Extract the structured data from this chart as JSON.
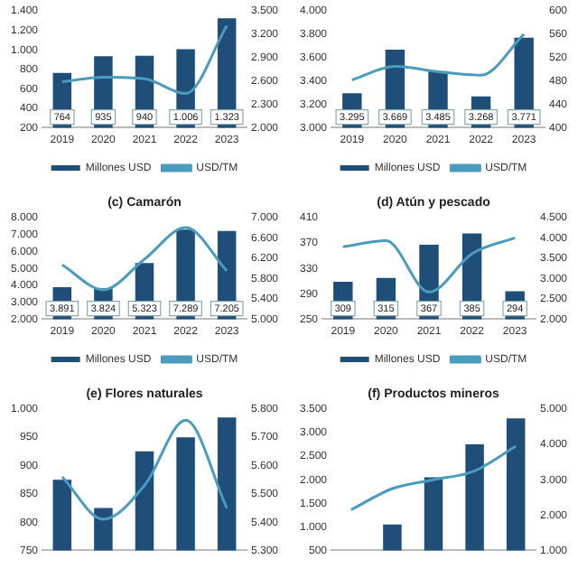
{
  "chart_data": [
    {
      "type": "bar",
      "categories": [
        "2019",
        "2020",
        "2021",
        "2022",
        "2023"
      ],
      "series": [
        {
          "name": "Millones USD",
          "color": "#1f4e79",
          "values": [
            764,
            935,
            940,
            1006,
            1323
          ],
          "value_labels": [
            "764",
            "935",
            "940",
            "1.006",
            "1.323"
          ]
        },
        {
          "name": "USD/TM",
          "type": "line",
          "axis": "y2",
          "color": "#4a9bbd",
          "values": [
            2590,
            2650,
            2630,
            2440,
            3310
          ]
        }
      ],
      "ylim": [
        200,
        1400
      ],
      "yticks": [
        200,
        400,
        600,
        800,
        {
          "value": 1000,
          "label": "1.000"
        },
        {
          "value": 1200,
          "label": "1.200"
        },
        {
          "value": 1400,
          "label": "1.400"
        }
      ],
      "y2lim": [
        2000,
        3500
      ],
      "y2ticks": [
        {
          "value": 2000,
          "label": "2.000"
        },
        {
          "value": 2300,
          "label": "2.300"
        },
        {
          "value": 2600,
          "label": "2.600"
        },
        {
          "value": 2900,
          "label": "2.900"
        },
        {
          "value": 3200,
          "label": "3.200"
        },
        {
          "value": 3500,
          "label": "3.500"
        }
      ],
      "legend": "bottom",
      "marker": "none",
      "grid": false
    },
    {
      "type": "bar",
      "categories": [
        "2019",
        "2020",
        "2021",
        "2022",
        "2023"
      ],
      "series": [
        {
          "name": "Millones USD",
          "color": "#1f4e79",
          "values": [
            3295,
            3669,
            3485,
            3268,
            3771
          ],
          "value_labels": [
            "3.295",
            "3.669",
            "3.485",
            "3.268",
            "3.771"
          ]
        },
        {
          "name": "USD/TM",
          "type": "line",
          "axis": "y2",
          "color": "#4a9bbd",
          "values": [
            482,
            505,
            496,
            490,
            560
          ]
        }
      ],
      "ylim": [
        3000,
        4000
      ],
      "yticks": [
        {
          "value": 3000,
          "label": "3.000"
        },
        {
          "value": 3200,
          "label": "3.200"
        },
        {
          "value": 3400,
          "label": "3.400"
        },
        {
          "value": 3600,
          "label": "3.600"
        },
        {
          "value": 3800,
          "label": "3.800"
        },
        {
          "value": 4000,
          "label": "4.000"
        }
      ],
      "y2lim": [
        400,
        600
      ],
      "y2ticks": [
        400,
        440,
        480,
        520,
        560,
        600
      ],
      "legend": "bottom",
      "marker": "none",
      "grid": false
    },
    {
      "type": "bar",
      "title": "(c) Camarón",
      "categories": [
        "2019",
        "2020",
        "2021",
        "2022",
        "2023"
      ],
      "series": [
        {
          "name": "Millones USD",
          "color": "#1f4e79",
          "values": [
            3891,
            3824,
            5323,
            7289,
            7205
          ],
          "value_labels": [
            "3.891",
            "3.824",
            "5.323",
            "7.289",
            "7.205"
          ]
        },
        {
          "name": "USD/TM",
          "type": "line",
          "axis": "y2",
          "color": "#4a9bbd",
          "values": [
            6070,
            5580,
            6180,
            6800,
            5950
          ]
        }
      ],
      "ylim": [
        2000,
        8000
      ],
      "yticks": [
        {
          "value": 2000,
          "label": "2.000"
        },
        {
          "value": 3000,
          "label": "3.000"
        },
        {
          "value": 4000,
          "label": "4.000"
        },
        {
          "value": 5000,
          "label": "5.000"
        },
        {
          "value": 6000,
          "label": "6.000"
        },
        {
          "value": 7000,
          "label": "7.000"
        },
        {
          "value": 8000,
          "label": "8.000"
        }
      ],
      "y2lim": [
        5000,
        7000
      ],
      "y2ticks": [
        {
          "value": 5000,
          "label": "5.000"
        },
        {
          "value": 5400,
          "label": "5.400"
        },
        {
          "value": 5800,
          "label": "5.800"
        },
        {
          "value": 6200,
          "label": "6.200"
        },
        {
          "value": 6600,
          "label": "6.600"
        },
        {
          "value": 7000,
          "label": "7.000"
        }
      ],
      "legend": "bottom",
      "marker": "none",
      "grid": false
    },
    {
      "type": "bar",
      "title": "(d) Atún y pescado",
      "categories": [
        "2019",
        "2020",
        "2021",
        "2022",
        "2023"
      ],
      "series": [
        {
          "name": "Millones USD",
          "color": "#1f4e79",
          "values": [
            309,
            315,
            367,
            385,
            294
          ],
          "value_labels": [
            "309",
            "315",
            "367",
            "385",
            "294"
          ]
        },
        {
          "name": "USD/TM",
          "type": "line",
          "axis": "y2",
          "color": "#4a9bbd",
          "values": [
            3780,
            3930,
            2670,
            3610,
            4000
          ]
        }
      ],
      "ylim": [
        250,
        410
      ],
      "yticks": [
        250,
        290,
        330,
        370,
        410
      ],
      "y2lim": [
        2000,
        4500
      ],
      "y2ticks": [
        {
          "value": 2000,
          "label": "2.000"
        },
        {
          "value": 2500,
          "label": "2.500"
        },
        {
          "value": 3000,
          "label": "3.000"
        },
        {
          "value": 3500,
          "label": "3.500"
        },
        {
          "value": 4000,
          "label": "4.000"
        },
        {
          "value": 4500,
          "label": "4.500"
        }
      ],
      "legend": "bottom",
      "marker": "none",
      "grid": false
    },
    {
      "type": "bar",
      "title": "(e) Flores naturales",
      "categories": [
        null,
        null,
        null,
        null,
        null
      ],
      "series": [
        {
          "color": "#1f4e79",
          "values": [
            875,
            825,
            925,
            950,
            985
          ]
        },
        {
          "type": "line",
          "axis": "y2",
          "color": "#4a9bbd",
          "values": [
            5560,
            5410,
            5530,
            5760,
            5450
          ]
        }
      ],
      "ylim": [
        750,
        1000
      ],
      "yticks": [
        750,
        800,
        850,
        900,
        950,
        {
          "value": 1000,
          "label": "1.000"
        }
      ],
      "y2lim": [
        5300,
        5800
      ],
      "y2ticks": [
        {
          "value": 5300,
          "label": "5.300"
        },
        {
          "value": 5400,
          "label": "5.400"
        },
        {
          "value": 5500,
          "label": "5.500"
        },
        {
          "value": 5600,
          "label": "5.600"
        },
        {
          "value": 5700,
          "label": "5.700"
        },
        {
          "value": 5800,
          "label": "5.800"
        }
      ],
      "marker": "none",
      "grid": false
    },
    {
      "type": "bar",
      "title": "(f) Productos mineros",
      "categories": [
        null,
        null,
        null,
        null,
        null
      ],
      "series": [
        {
          "color": "#1f4e79",
          "values": [
            null,
            1050,
            2050,
            2750,
            3300
          ]
        },
        {
          "type": "line",
          "axis": "y2",
          "color": "#4a9bbd",
          "values": [
            2150,
            2750,
            3000,
            3250,
            3950
          ]
        }
      ],
      "ylim": [
        500,
        3500
      ],
      "yticks": [
        500,
        {
          "value": 1000,
          "label": "1.000"
        },
        {
          "value": 1500,
          "label": "1.500"
        },
        {
          "value": 2000,
          "label": "2.000"
        },
        {
          "value": 2500,
          "label": "2.500"
        },
        {
          "value": 3000,
          "label": "3.000"
        },
        {
          "value": 3500,
          "label": "3.500"
        }
      ],
      "y2lim": [
        1000,
        5000
      ],
      "y2ticks": [
        {
          "value": 1000,
          "label": "1.000"
        },
        {
          "value": 2000,
          "label": "2.000"
        },
        {
          "value": 3000,
          "label": "3.000"
        },
        {
          "value": 4000,
          "label": "4.000"
        },
        {
          "value": 5000,
          "label": "5.000"
        }
      ],
      "marker": "none",
      "grid": false
    }
  ]
}
